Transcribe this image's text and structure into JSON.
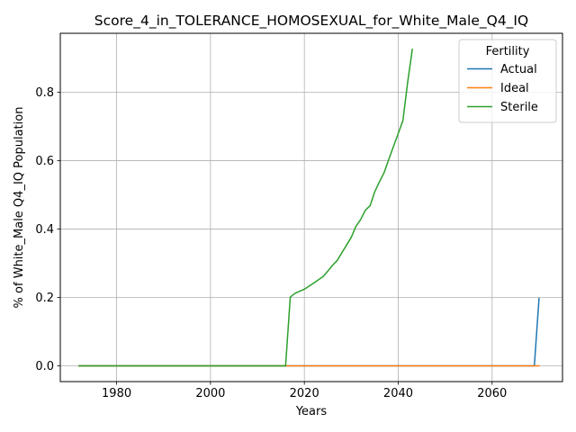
{
  "chart_data": {
    "type": "line",
    "title": "Score_4_in_TOLERANCE_HOMOSEXUAL_for_White_Male_Q4_IQ",
    "xlabel": "Years",
    "ylabel": "% of White_Male Q4_IQ Population",
    "xlim": [
      1968,
      2075
    ],
    "ylim": [
      -0.046,
      0.972
    ],
    "xticks": [
      1980,
      2000,
      2020,
      2040,
      2060
    ],
    "yticks": [
      0.0,
      0.2,
      0.4,
      0.6,
      0.8
    ],
    "xtick_labels": [
      "1980",
      "2000",
      "2020",
      "2040",
      "2060"
    ],
    "ytick_labels": [
      "0.0",
      "0.2",
      "0.4",
      "0.6",
      "0.8"
    ],
    "grid": true,
    "legend": {
      "title": "Fertility",
      "position": "top-right"
    },
    "series": [
      {
        "name": "Actual",
        "color": "#1f77b4",
        "x": [
          1972,
          2069,
          2070
        ],
        "y": [
          0.0,
          0.0,
          0.197
        ]
      },
      {
        "name": "Ideal",
        "color": "#ff7f0e",
        "x": [
          1972,
          2070
        ],
        "y": [
          0.0,
          0.0
        ]
      },
      {
        "name": "Sterile",
        "color": "#2ca02c",
        "x": [
          1972,
          2016,
          2017,
          2018,
          2020,
          2022,
          2024,
          2025,
          2026,
          2027,
          2028,
          2029,
          2030,
          2031,
          2032,
          2033,
          2034,
          2035,
          2036,
          2037,
          2038,
          2039,
          2040,
          2041,
          2042,
          2043
        ],
        "y": [
          0.0,
          0.0,
          0.201,
          0.212,
          0.224,
          0.242,
          0.261,
          0.277,
          0.294,
          0.308,
          0.331,
          0.353,
          0.376,
          0.408,
          0.428,
          0.455,
          0.468,
          0.509,
          0.538,
          0.565,
          0.604,
          0.642,
          0.679,
          0.717,
          0.828,
          0.925
        ]
      }
    ]
  }
}
